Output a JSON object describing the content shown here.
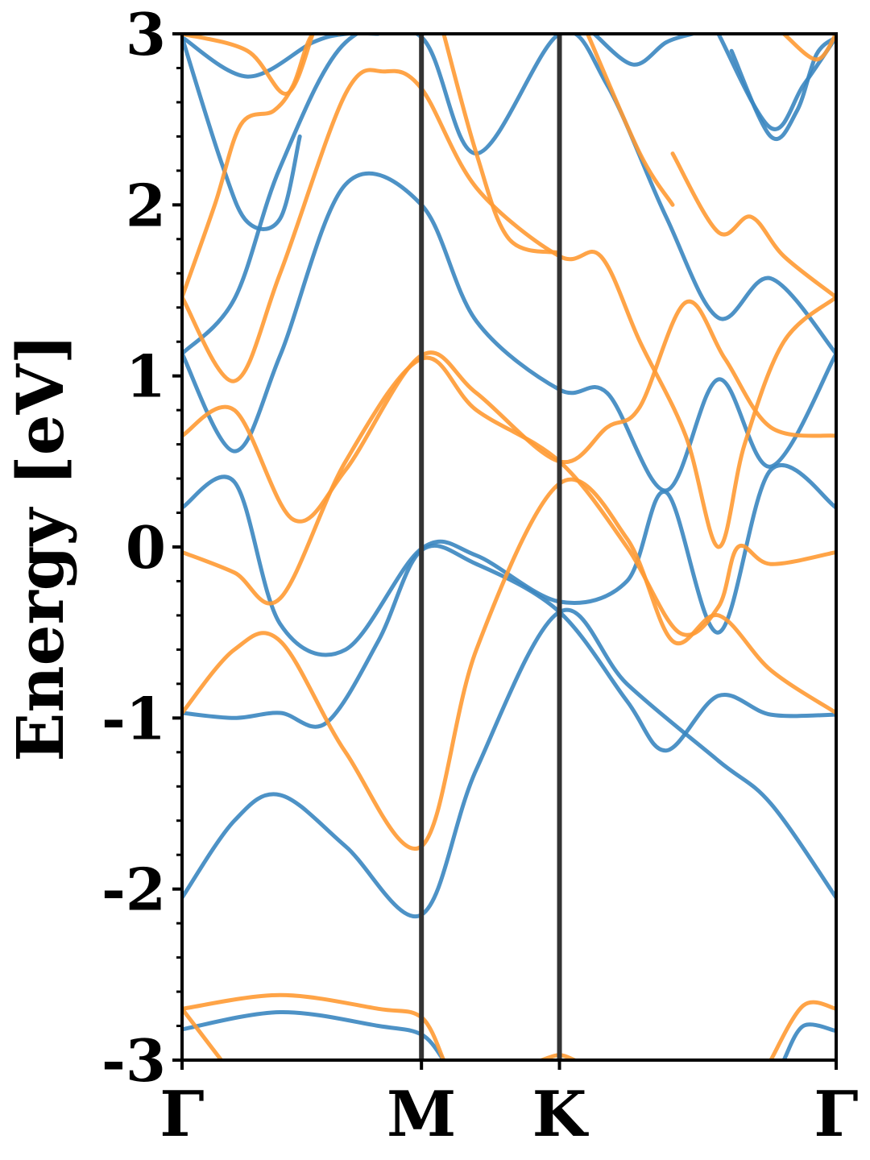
{
  "chart_data": {
    "type": "line",
    "title": "",
    "xlabel": "",
    "ylabel": "Energy [eV]",
    "ylim": [
      -3,
      3
    ],
    "xlim": [
      0,
      1
    ],
    "yticks": [
      -3,
      -2,
      -1,
      0,
      1,
      2,
      3
    ],
    "ytick_labels": [
      "-3",
      "-2",
      "-1",
      "0",
      "1",
      "2",
      "3"
    ],
    "high_symmetry_points": [
      {
        "label": "Γ",
        "x": 0.0
      },
      {
        "label": "M",
        "x": 0.366
      },
      {
        "label": "K",
        "x": 0.577
      },
      {
        "label": "Γ",
        "x": 1.0
      }
    ],
    "grid": false,
    "legend": "none",
    "colors": {
      "spin_up": "#3a86c0",
      "spin_down": "#ff9a33",
      "kline": "#333333"
    },
    "series": [
      {
        "color": "#3a86c0",
        "x": [
          0,
          0.08,
          0.15,
          0.25,
          0.366,
          0.45,
          0.577,
          0.68,
          0.82,
          0.9,
          1.0
        ],
        "y": [
          -2.05,
          -1.6,
          -1.45,
          -1.75,
          -2.15,
          -1.3,
          -0.38,
          -0.8,
          -1.25,
          -1.5,
          -2.05
        ]
      },
      {
        "color": "#3a86c0",
        "x": [
          0,
          0.08,
          0.15,
          0.22,
          0.3,
          0.366,
          0.45,
          0.577,
          0.68,
          0.74,
          0.82,
          0.9,
          1.0
        ],
        "y": [
          -0.97,
          -1.0,
          -0.97,
          -1.03,
          -0.55,
          -0.02,
          -0.1,
          -0.38,
          -0.9,
          -1.19,
          -0.87,
          -0.98,
          -0.98
        ]
      },
      {
        "color": "#3a86c0",
        "x": [
          0,
          0.08,
          0.15,
          0.25,
          0.366,
          0.45,
          0.577,
          0.68,
          0.74,
          0.82,
          0.9,
          1.0
        ],
        "y": [
          0.23,
          0.38,
          -0.45,
          -0.6,
          -0.01,
          -0.05,
          -0.32,
          -0.2,
          0.32,
          -0.5,
          0.45,
          0.23
        ]
      },
      {
        "color": "#3a86c0",
        "x": [
          0,
          0.08,
          0.15,
          0.25,
          0.366,
          0.45,
          0.577,
          0.65,
          0.74,
          0.82,
          0.9,
          1.0
        ],
        "y": [
          1.13,
          0.56,
          1.12,
          2.12,
          2.0,
          1.32,
          0.92,
          0.9,
          0.33,
          0.98,
          0.47,
          1.13
        ]
      },
      {
        "color": "#3a86c0",
        "x": [
          0,
          0.08,
          0.15,
          0.25,
          0.366,
          0.45,
          0.577,
          0.65,
          0.74,
          0.82,
          0.9,
          1.0
        ],
        "y": [
          1.13,
          1.45,
          2.22,
          2.95,
          2.98,
          2.3,
          3.0,
          2.7,
          1.93,
          1.34,
          1.57,
          1.13
        ]
      },
      {
        "color": "#3a86c0",
        "x": [
          0,
          0.1,
          0.2,
          0.25,
          0.3
        ],
        "y": [
          2.98,
          2.75,
          2.95,
          3.0,
          3.0
        ]
      },
      {
        "color": "#3a86c0",
        "x": [
          0,
          0.06,
          0.1,
          0.15,
          0.18
        ],
        "y": [
          2.98,
          2.25,
          1.9,
          1.92,
          2.4
        ]
      },
      {
        "color": "#3a86c0",
        "x": [
          0.63,
          0.69,
          0.74,
          0.78
        ],
        "y": [
          3.0,
          2.82,
          2.95,
          3.0
        ]
      },
      {
        "color": "#3a86c0",
        "x": [
          0.84,
          0.9,
          0.94,
          0.97,
          1.0
        ],
        "y": [
          2.9,
          2.4,
          2.55,
          2.88,
          2.98
        ]
      },
      {
        "color": "#3a86c0",
        "x": [
          0.82,
          0.9,
          0.95,
          1.0
        ],
        "y": [
          3.0,
          2.45,
          2.7,
          2.98
        ]
      },
      {
        "color": "#3a86c0",
        "x": [
          0,
          0.15,
          0.3,
          0.366,
          0.4
        ],
        "y": [
          -2.82,
          -2.72,
          -2.8,
          -2.85,
          -3.0
        ]
      },
      {
        "color": "#3a86c0",
        "x": [
          0.92,
          0.95,
          1.0
        ],
        "y": [
          -3.0,
          -2.8,
          -2.83
        ]
      },
      {
        "color": "#ff9a33",
        "x": [
          0,
          0.08,
          0.15,
          0.25,
          0.366,
          0.45,
          0.577,
          0.68,
          0.75,
          0.82,
          0.9,
          1.0
        ],
        "y": [
          -0.97,
          -0.6,
          -0.55,
          -1.2,
          -1.75,
          -0.6,
          0.37,
          0.05,
          -0.55,
          -0.4,
          -0.72,
          -0.97
        ]
      },
      {
        "color": "#ff9a33",
        "x": [
          0,
          0.08,
          0.15,
          0.25,
          0.366,
          0.45,
          0.577,
          0.68,
          0.76,
          0.82,
          0.85,
          0.9,
          1.0
        ],
        "y": [
          -0.03,
          -0.15,
          -0.3,
          0.5,
          1.1,
          0.8,
          0.5,
          0.0,
          -0.5,
          -0.35,
          0.0,
          -0.1,
          -0.03
        ]
      },
      {
        "color": "#ff9a33",
        "x": [
          0,
          0.08,
          0.17,
          0.25,
          0.366,
          0.45,
          0.577,
          0.65,
          0.7,
          0.77,
          0.83,
          0.9,
          1.0
        ],
        "y": [
          0.65,
          0.8,
          0.16,
          0.45,
          1.12,
          0.9,
          0.5,
          0.7,
          0.82,
          1.43,
          1.1,
          0.7,
          0.65
        ]
      },
      {
        "color": "#ff9a33",
        "x": [
          0,
          0.08,
          0.15,
          0.25,
          0.31,
          0.366,
          0.45,
          0.577,
          0.64,
          0.7,
          0.77,
          0.82,
          0.86,
          0.92,
          1.0
        ],
        "y": [
          1.46,
          0.97,
          1.6,
          2.65,
          2.78,
          2.68,
          2.1,
          1.7,
          1.7,
          1.2,
          0.65,
          0.0,
          0.6,
          1.2,
          1.46
        ]
      },
      {
        "color": "#ff9a33",
        "x": [
          0,
          0.05,
          0.09,
          0.14,
          0.17,
          0.2,
          0.24
        ],
        "y": [
          1.46,
          2.0,
          2.47,
          2.55,
          2.7,
          3.0,
          3.0
        ]
      },
      {
        "color": "#ff9a33",
        "x": [
          0.4,
          0.45,
          0.5,
          0.577
        ],
        "y": [
          3.0,
          2.3,
          1.8,
          1.72
        ]
      },
      {
        "color": "#ff9a33",
        "x": [
          0.62,
          0.7,
          0.75
        ],
        "y": [
          3.0,
          2.3,
          2.0
        ]
      },
      {
        "color": "#ff9a33",
        "x": [
          0.75,
          0.82,
          0.87,
          0.92,
          1.0
        ],
        "y": [
          2.3,
          1.84,
          1.93,
          1.7,
          1.46
        ]
      },
      {
        "color": "#ff9a33",
        "x": [
          0.92,
          0.97,
          1.0
        ],
        "y": [
          3.0,
          2.85,
          3.0
        ]
      },
      {
        "color": "#ff9a33",
        "x": [
          0,
          0.1,
          0.16,
          0.2
        ],
        "y": [
          3.0,
          2.9,
          2.65,
          3.0
        ]
      },
      {
        "color": "#ff9a33",
        "x": [
          0,
          0.15,
          0.3,
          0.366,
          0.4
        ],
        "y": [
          -2.7,
          -2.62,
          -2.7,
          -2.75,
          -3.0
        ]
      },
      {
        "color": "#ff9a33",
        "x": [
          0.55,
          0.577,
          0.6
        ],
        "y": [
          -3.0,
          -2.97,
          -3.0
        ]
      },
      {
        "color": "#ff9a33",
        "x": [
          0.9,
          0.95,
          1.0
        ],
        "y": [
          -3.0,
          -2.68,
          -2.7
        ]
      },
      {
        "color": "#ff9a33",
        "x": [
          0,
          0.03,
          0.06
        ],
        "y": [
          -2.7,
          -2.85,
          -3.0
        ]
      }
    ]
  }
}
